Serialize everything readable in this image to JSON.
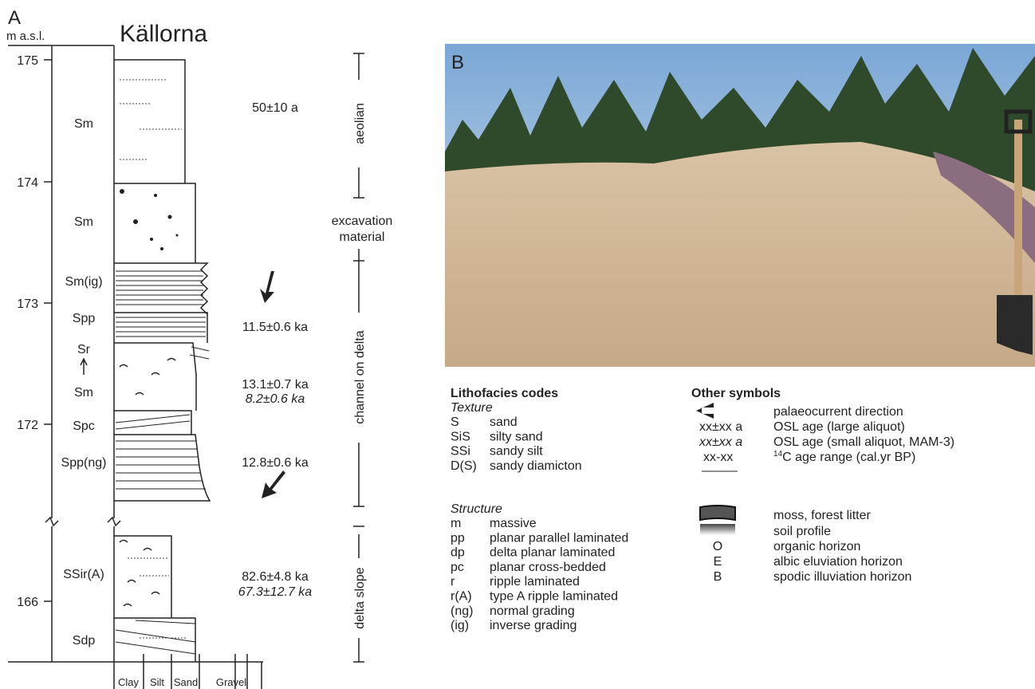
{
  "panel_a": {
    "label": "A",
    "unit": "m a.s.l.",
    "site": "Källorna",
    "elevation_ticks": [
      "175",
      "174",
      "173",
      "172",
      "166"
    ],
    "facies": [
      "Sm",
      "Sm",
      "Sm(ig)",
      "Spp",
      "Sr",
      "Sm",
      "Spc",
      "Spp(ng)",
      "SSir(A)",
      "Sdp"
    ],
    "ages": [
      "50±10 a",
      "11.5±0.6 ka",
      "13.1±0.7 ka",
      "8.2±0.6 ka",
      "12.8±0.6 ka",
      "82.6±4.8 ka",
      "67.3±12.7 ka"
    ],
    "environments": [
      "aeolian",
      "excavation",
      "material",
      "channel on delta",
      "delta slope"
    ],
    "grain_sizes": [
      "Clay",
      "Silt",
      "Sand",
      "Gravel"
    ]
  },
  "panel_b": {
    "label": "B"
  },
  "legend": {
    "lithofacies_title": "Lithofacies codes",
    "texture_title": "Texture",
    "texture": [
      [
        "S",
        "sand"
      ],
      [
        "SiS",
        "silty sand"
      ],
      [
        "SSi",
        "sandy silt"
      ],
      [
        "D(S)",
        "sandy diamicton"
      ]
    ],
    "structure_title": "Structure",
    "structure": [
      [
        "m",
        "massive"
      ],
      [
        "pp",
        "planar parallel laminated"
      ],
      [
        "dp",
        "delta planar laminated"
      ],
      [
        "pc",
        "planar cross-bedded"
      ],
      [
        "r",
        "ripple laminated"
      ],
      [
        "r(A)",
        "type A ripple laminated"
      ],
      [
        "(ng)",
        "normal grading"
      ],
      [
        "(ig)",
        "inverse grading"
      ]
    ],
    "other_title": "Other symbols",
    "other": [
      [
        "",
        "palaeocurrent direction"
      ],
      [
        "xx±xx a",
        "OSL age (large aliquot)"
      ],
      [
        "xx±xx a",
        "OSL age (small aliquot, MAM-3)"
      ],
      [
        "xx-xx",
        "C age range (cal.yr BP)"
      ],
      [
        "",
        "moss, forest litter"
      ],
      [
        "",
        "soil profile"
      ],
      [
        "O",
        "organic horizon"
      ],
      [
        "E",
        "albic eluviation horizon"
      ],
      [
        "B",
        "spodic illuviation horizon"
      ]
    ],
    "c14_sup": "14"
  }
}
